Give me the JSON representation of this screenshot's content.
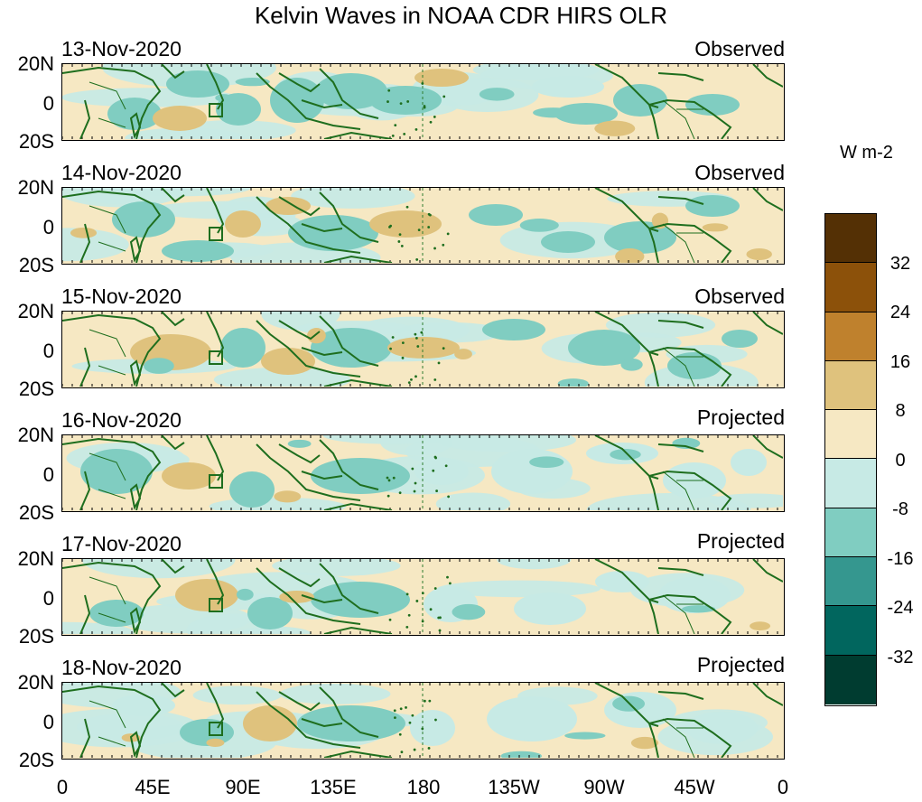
{
  "title": "Kelvin Waves in NOAA CDR HIRS OLR",
  "panels": [
    {
      "date": "13-Nov-2020",
      "status": "Observed"
    },
    {
      "date": "14-Nov-2020",
      "status": "Observed"
    },
    {
      "date": "15-Nov-2020",
      "status": "Observed"
    },
    {
      "date": "16-Nov-2020",
      "status": "Projected"
    },
    {
      "date": "17-Nov-2020",
      "status": "Projected"
    },
    {
      "date": "18-Nov-2020",
      "status": "Projected"
    }
  ],
  "lat_labels": [
    "20N",
    "0",
    "20S"
  ],
  "lon_labels": [
    "0",
    "45E",
    "90E",
    "135E",
    "180",
    "135W",
    "90W",
    "45W",
    "0"
  ],
  "colorbar": {
    "units": "W m-2",
    "labels": [
      "32",
      "24",
      "16",
      "8",
      "0",
      "-8",
      "-16",
      "-24",
      "-32"
    ],
    "colors": [
      "#543005",
      "#8c510a",
      "#bf812d",
      "#dfc27d",
      "#f6e8c3",
      "#c7eae5",
      "#80cdc1",
      "#35978f",
      "#01665e",
      "#003c30"
    ]
  },
  "map_colors": {
    "background": "#f3e4c2",
    "coast": "#1e6e1e",
    "date_line": "#2f7d2f"
  }
}
